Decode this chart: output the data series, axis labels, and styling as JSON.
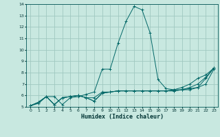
{
  "xlabel": "Humidex (Indice chaleur)",
  "xlim": [
    -0.5,
    23.5
  ],
  "ylim": [
    5,
    14
  ],
  "xticks": [
    0,
    1,
    2,
    3,
    4,
    5,
    6,
    7,
    8,
    9,
    10,
    11,
    12,
    13,
    14,
    15,
    16,
    17,
    18,
    19,
    20,
    21,
    22,
    23
  ],
  "yticks": [
    5,
    6,
    7,
    8,
    9,
    10,
    11,
    12,
    13,
    14
  ],
  "bg_color": "#c8e8e0",
  "grid_color": "#a0c8c0",
  "line_color": "#006666",
  "lines": [
    [
      5.1,
      5.3,
      5.9,
      5.9,
      5.2,
      5.8,
      5.9,
      6.1,
      6.3,
      8.3,
      8.3,
      10.6,
      12.5,
      13.8,
      13.5,
      11.5,
      7.4,
      6.6,
      6.5,
      6.5,
      6.5,
      6.7,
      7.0,
      8.3
    ],
    [
      5.1,
      5.4,
      5.9,
      5.2,
      5.8,
      5.9,
      6.0,
      5.8,
      5.8,
      6.3,
      6.3,
      6.4,
      6.4,
      6.4,
      6.4,
      6.4,
      6.4,
      6.4,
      6.4,
      6.5,
      6.6,
      6.7,
      7.5,
      8.4
    ],
    [
      5.1,
      5.4,
      5.9,
      5.2,
      5.8,
      5.9,
      6.0,
      5.8,
      5.5,
      6.2,
      6.3,
      6.4,
      6.4,
      6.4,
      6.4,
      6.4,
      6.4,
      6.4,
      6.4,
      6.5,
      6.7,
      7.0,
      7.6,
      8.4
    ],
    [
      5.1,
      5.4,
      5.9,
      5.2,
      5.8,
      5.9,
      6.0,
      5.8,
      5.5,
      6.2,
      6.3,
      6.4,
      6.4,
      6.4,
      6.4,
      6.4,
      6.4,
      6.4,
      6.5,
      6.7,
      7.0,
      7.5,
      7.8,
      8.4
    ]
  ]
}
